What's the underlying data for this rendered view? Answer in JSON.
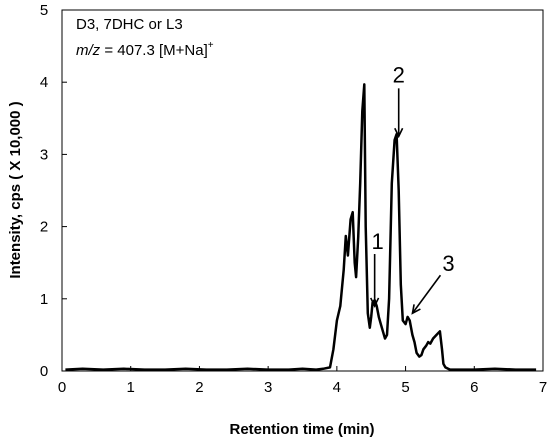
{
  "chart_data": {
    "type": "line",
    "xlabel": "Retention time (min)",
    "ylabel": "Intensity, cps ( X 10,000 )",
    "xlim": [
      0,
      7
    ],
    "ylim": [
      0,
      5
    ],
    "x_ticks": [
      "0",
      "1",
      "2",
      "3",
      "4",
      "5",
      "6",
      "7"
    ],
    "y_ticks": [
      "0",
      "1",
      "2",
      "3",
      "4",
      "5"
    ],
    "grid": false,
    "legend": {
      "line1": "D3, 7DHC or L3",
      "line2_italic": "m/z",
      "line2_rest": " = 407.3 [M+Na]",
      "line2_sup": "+"
    },
    "annotations": [
      {
        "label": "1",
        "x": 4.55,
        "y": 0.9
      },
      {
        "label": "2",
        "x": 4.9,
        "y": 3.25
      },
      {
        "label": "3",
        "x": 5.1,
        "y": 0.8
      }
    ],
    "series": [
      {
        "x": [
          0.05,
          0.3,
          0.6,
          0.9,
          1.2,
          1.5,
          1.8,
          2.1,
          2.4,
          2.7,
          3.0,
          3.3,
          3.5,
          3.7,
          3.8,
          3.9,
          3.95,
          4.0,
          4.05,
          4.1,
          4.13,
          4.16,
          4.2,
          4.23,
          4.26,
          4.28,
          4.31,
          4.34,
          4.37,
          4.4,
          4.42,
          4.45,
          4.48,
          4.5,
          4.52,
          4.55,
          4.58,
          4.61,
          4.64,
          4.67,
          4.7,
          4.73,
          4.76,
          4.8,
          4.84,
          4.87,
          4.9,
          4.93,
          4.96,
          5.0,
          5.03,
          5.06,
          5.1,
          5.13,
          5.16,
          5.2,
          5.23,
          5.26,
          5.3,
          5.33,
          5.36,
          5.4,
          5.45,
          5.5,
          5.53,
          5.55,
          5.58,
          5.62,
          5.65,
          5.7,
          5.8,
          6.0,
          6.3,
          6.6,
          6.9
        ],
        "y": [
          0.02,
          0.03,
          0.02,
          0.03,
          0.02,
          0.02,
          0.03,
          0.02,
          0.02,
          0.03,
          0.02,
          0.02,
          0.03,
          0.02,
          0.03,
          0.05,
          0.3,
          0.7,
          0.9,
          1.4,
          1.87,
          1.6,
          2.1,
          2.2,
          1.5,
          1.3,
          1.85,
          2.6,
          3.6,
          3.97,
          2.0,
          0.8,
          0.6,
          0.75,
          0.95,
          0.98,
          0.9,
          0.75,
          0.65,
          0.55,
          0.45,
          0.5,
          1.0,
          2.6,
          3.2,
          3.28,
          2.5,
          1.2,
          0.7,
          0.65,
          0.75,
          0.7,
          0.5,
          0.4,
          0.25,
          0.2,
          0.22,
          0.3,
          0.35,
          0.4,
          0.38,
          0.45,
          0.5,
          0.55,
          0.3,
          0.1,
          0.05,
          0.03,
          0.02,
          0.02,
          0.02,
          0.02,
          0.03,
          0.02,
          0.02
        ]
      }
    ]
  }
}
